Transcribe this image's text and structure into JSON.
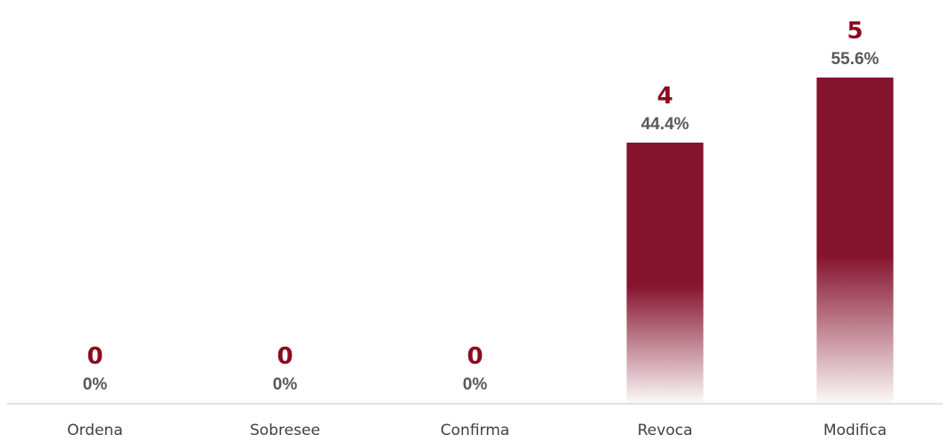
{
  "chart_data": {
    "type": "bar",
    "categories": [
      "Ordena",
      "Sobresee",
      "Confirma",
      "Revoca",
      "Modifica"
    ],
    "values": [
      0,
      0,
      0,
      4,
      5
    ],
    "percent_labels": [
      "0%",
      "0%",
      "0%",
      "44.4%",
      "55.6%"
    ],
    "count_labels": [
      "0",
      "0",
      "0",
      "4",
      "5"
    ],
    "title": "",
    "xlabel": "",
    "ylabel": "",
    "ylim": [
      0,
      5
    ],
    "grid": false,
    "legend": "none",
    "colors": {
      "bar": "#86142f",
      "count_label": "#8b0a1e",
      "percent_label": "#595959",
      "axis": "#d9d9d9",
      "category_label": "#404040"
    }
  }
}
